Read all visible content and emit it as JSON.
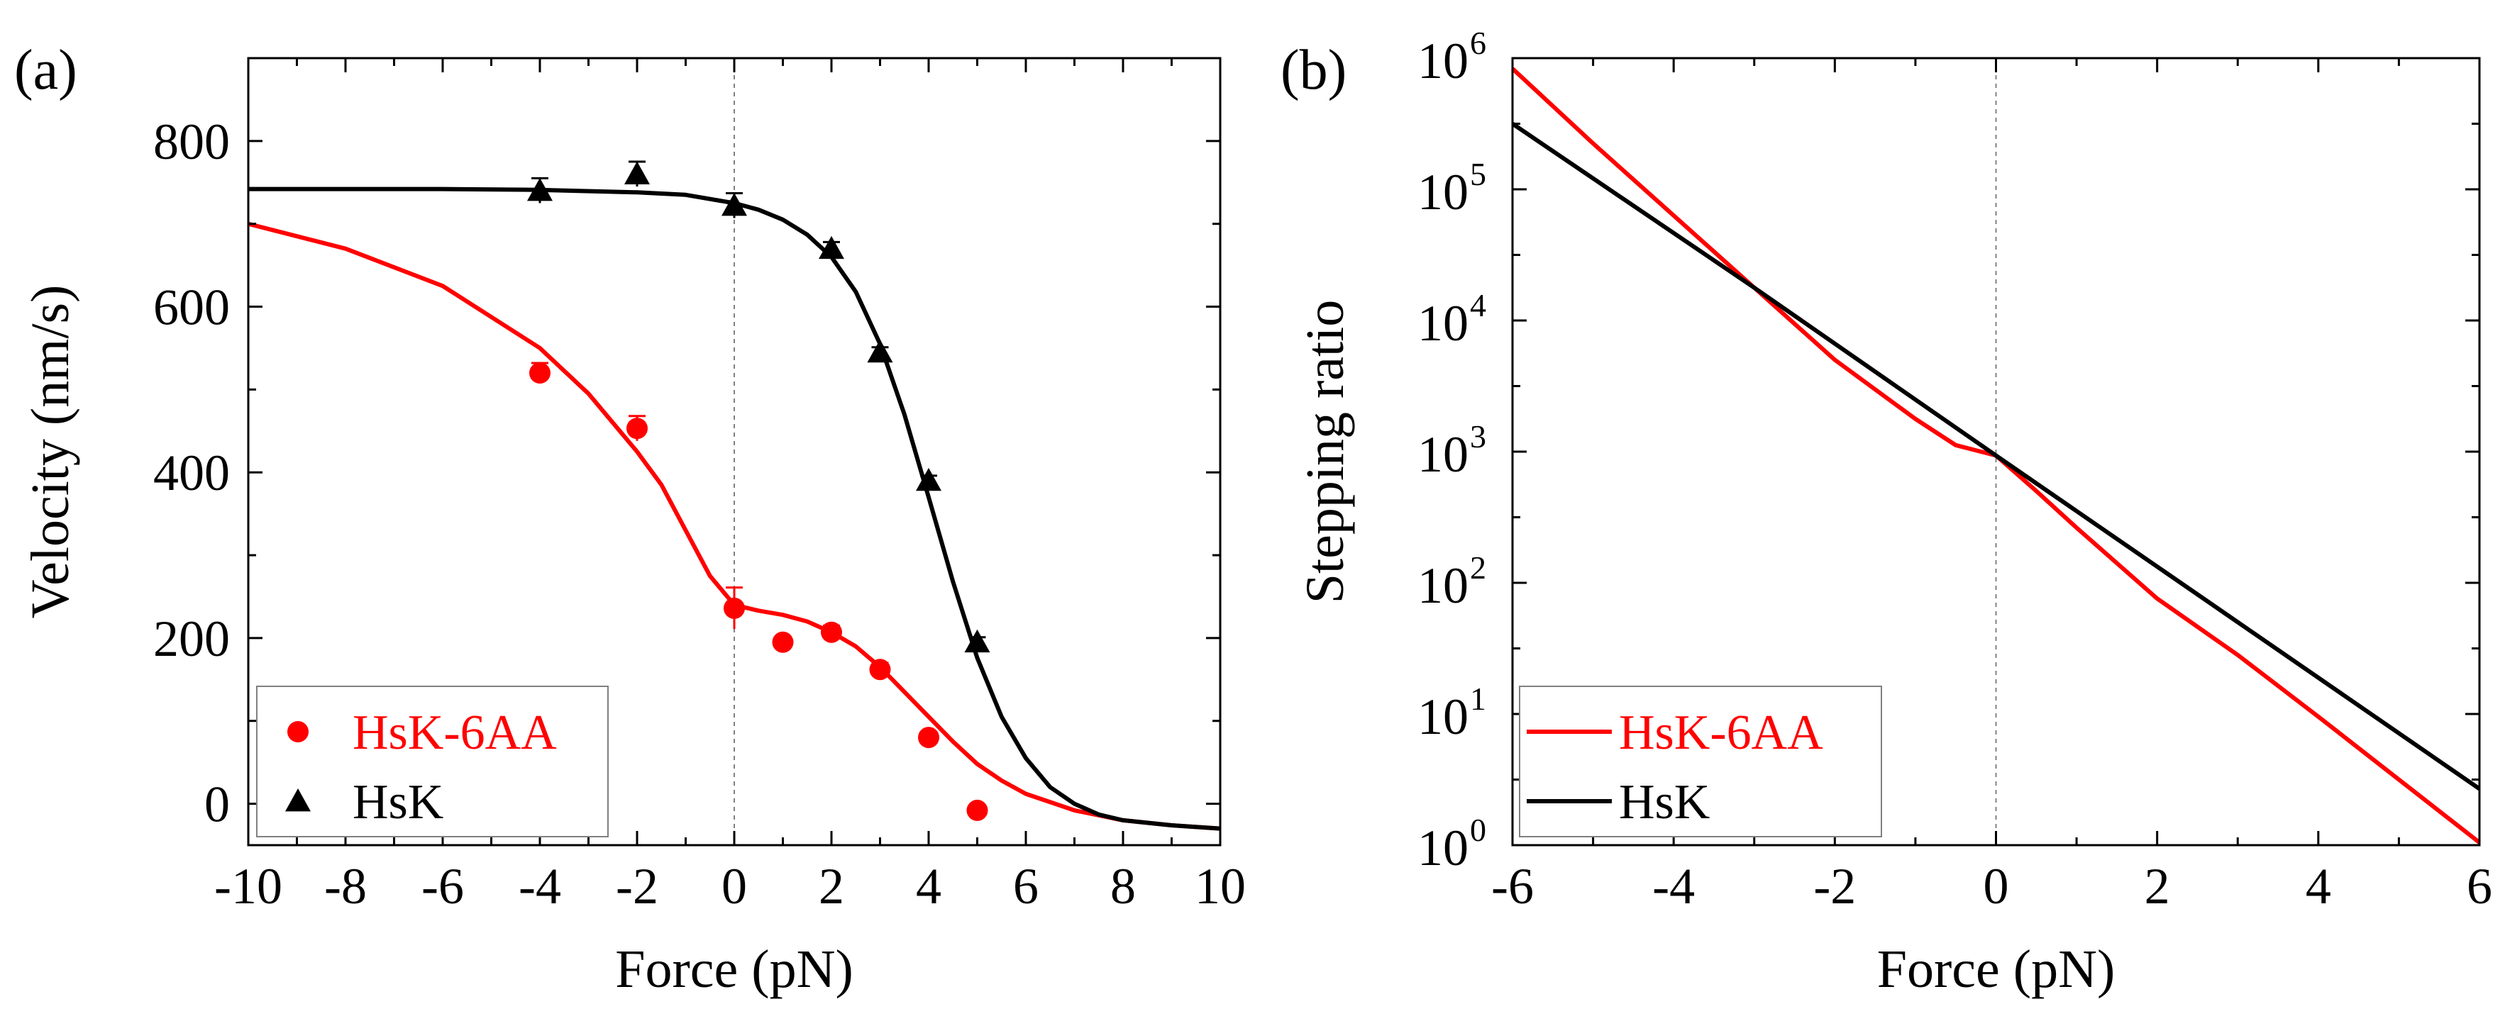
{
  "charts": [
    {
      "type": "scatter",
      "panel_label": "(a)",
      "xlabel": "Force (pN)",
      "ylabel": "Velocity (nm/s)",
      "xlim": [
        -10,
        10
      ],
      "ylim": [
        -50,
        900
      ],
      "xticks": [
        -10,
        -8,
        -6,
        -4,
        -2,
        0,
        2,
        4,
        6,
        8,
        10
      ],
      "yticks": [
        0,
        200,
        400,
        600,
        800
      ],
      "xtick_labels": [
        "-10",
        "-8",
        "-6",
        "-4",
        "-2",
        "0",
        "2",
        "4",
        "6",
        "8",
        "10"
      ],
      "ytick_labels": [
        "0",
        "200",
        "400",
        "600",
        "800"
      ],
      "legend_position": "bottom-left",
      "series": [
        {
          "name": "HsK-6AA",
          "color": "#ff0000",
          "marker": "circle",
          "points": [
            {
              "x": -4,
              "y": 520,
              "err": 12
            },
            {
              "x": -2,
              "y": 453,
              "err": 15
            },
            {
              "x": 0,
              "y": 236,
              "err": 25
            },
            {
              "x": 1,
              "y": 195,
              "err": 6
            },
            {
              "x": 2,
              "y": 207,
              "err": 8
            },
            {
              "x": 3,
              "y": 162,
              "err": 8
            },
            {
              "x": 4,
              "y": 80,
              "err": 6
            },
            {
              "x": 5,
              "y": -8,
              "err": 5
            }
          ],
          "fit": [
            {
              "x": -10,
              "y": 700
            },
            {
              "x": -8,
              "y": 670
            },
            {
              "x": -6,
              "y": 625
            },
            {
              "x": -4,
              "y": 550
            },
            {
              "x": -3,
              "y": 495
            },
            {
              "x": -2,
              "y": 425
            },
            {
              "x": -1.5,
              "y": 385
            },
            {
              "x": -1,
              "y": 330
            },
            {
              "x": -0.5,
              "y": 275
            },
            {
              "x": 0,
              "y": 240
            },
            {
              "x": 0.5,
              "y": 233
            },
            {
              "x": 1,
              "y": 228
            },
            {
              "x": 1.5,
              "y": 220
            },
            {
              "x": 2,
              "y": 207
            },
            {
              "x": 2.5,
              "y": 190
            },
            {
              "x": 3,
              "y": 165
            },
            {
              "x": 3.5,
              "y": 135
            },
            {
              "x": 4,
              "y": 105
            },
            {
              "x": 4.5,
              "y": 75
            },
            {
              "x": 5,
              "y": 48
            },
            {
              "x": 5.5,
              "y": 28
            },
            {
              "x": 6,
              "y": 12
            },
            {
              "x": 7,
              "y": -8
            },
            {
              "x": 8,
              "y": -20
            },
            {
              "x": 9,
              "y": -26
            },
            {
              "x": 10,
              "y": -30
            }
          ]
        },
        {
          "name": "HsK",
          "color": "#000000",
          "marker": "triangle",
          "points": [
            {
              "x": -4,
              "y": 740,
              "err": 15
            },
            {
              "x": -2,
              "y": 760,
              "err": 15
            },
            {
              "x": 0,
              "y": 722,
              "err": 15
            },
            {
              "x": 2,
              "y": 670,
              "err": 8
            },
            {
              "x": 3,
              "y": 545,
              "err": 6
            },
            {
              "x": 4,
              "y": 390,
              "err": 6
            },
            {
              "x": 5,
              "y": 195,
              "err": 6
            }
          ],
          "fit": [
            {
              "x": -10,
              "y": 742
            },
            {
              "x": -6,
              "y": 742
            },
            {
              "x": -4,
              "y": 741
            },
            {
              "x": -2,
              "y": 738
            },
            {
              "x": -1,
              "y": 735
            },
            {
              "x": 0,
              "y": 725
            },
            {
              "x": 0.5,
              "y": 717
            },
            {
              "x": 1,
              "y": 705
            },
            {
              "x": 1.5,
              "y": 687
            },
            {
              "x": 2,
              "y": 660
            },
            {
              "x": 2.5,
              "y": 618
            },
            {
              "x": 3,
              "y": 555
            },
            {
              "x": 3.5,
              "y": 470
            },
            {
              "x": 4,
              "y": 370
            },
            {
              "x": 4.5,
              "y": 268
            },
            {
              "x": 5,
              "y": 176
            },
            {
              "x": 5.5,
              "y": 105
            },
            {
              "x": 6,
              "y": 55
            },
            {
              "x": 6.5,
              "y": 20
            },
            {
              "x": 7,
              "y": 0
            },
            {
              "x": 7.5,
              "y": -13
            },
            {
              "x": 8,
              "y": -20
            },
            {
              "x": 9,
              "y": -26
            },
            {
              "x": 10,
              "y": -30
            }
          ]
        }
      ]
    },
    {
      "type": "line",
      "panel_label": "(b)",
      "xlabel": "Force (pN)",
      "ylabel": "Stepping ratio",
      "yscale": "log",
      "xlim": [
        -6,
        6
      ],
      "ylim_log10": [
        0,
        6
      ],
      "xticks": [
        -6,
        -4,
        -2,
        0,
        2,
        4,
        6
      ],
      "xtick_labels": [
        "-6",
        "-4",
        "-2",
        "0",
        "2",
        "4",
        "6"
      ],
      "ytick_exponents": [
        0,
        1,
        2,
        3,
        4,
        5,
        6
      ],
      "ytick_labels": [
        {
          "base": "10",
          "exp": "0"
        },
        {
          "base": "10",
          "exp": "1"
        },
        {
          "base": "10",
          "exp": "2"
        },
        {
          "base": "10",
          "exp": "3"
        },
        {
          "base": "10",
          "exp": "4"
        },
        {
          "base": "10",
          "exp": "5"
        },
        {
          "base": "10",
          "exp": "6"
        }
      ],
      "legend_position": "bottom-left",
      "series": [
        {
          "name": "HsK-6AA",
          "color": "#ff0000",
          "points": [
            {
              "x": -6,
              "y_log10": 5.92
            },
            {
              "x": -5,
              "y_log10": 5.35
            },
            {
              "x": -4,
              "y_log10": 4.8
            },
            {
              "x": -3,
              "y_log10": 4.25
            },
            {
              "x": -2,
              "y_log10": 3.7
            },
            {
              "x": -1,
              "y_log10": 3.25
            },
            {
              "x": -0.5,
              "y_log10": 3.05
            },
            {
              "x": 0,
              "y_log10": 2.97
            },
            {
              "x": 0.5,
              "y_log10": 2.7
            },
            {
              "x": 1,
              "y_log10": 2.42
            },
            {
              "x": 2,
              "y_log10": 1.88
            },
            {
              "x": 3,
              "y_log10": 1.45
            },
            {
              "x": 4,
              "y_log10": 0.98
            },
            {
              "x": 5,
              "y_log10": 0.5
            },
            {
              "x": 6,
              "y_log10": 0.02
            }
          ]
        },
        {
          "name": "HsK",
          "color": "#000000",
          "points": [
            {
              "x": -6,
              "y_log10": 5.5
            },
            {
              "x": -3,
              "y_log10": 4.25
            },
            {
              "x": 0,
              "y_log10": 2.97
            },
            {
              "x": 3,
              "y_log10": 1.7
            },
            {
              "x": 6,
              "y_log10": 0.43
            }
          ]
        }
      ]
    }
  ]
}
